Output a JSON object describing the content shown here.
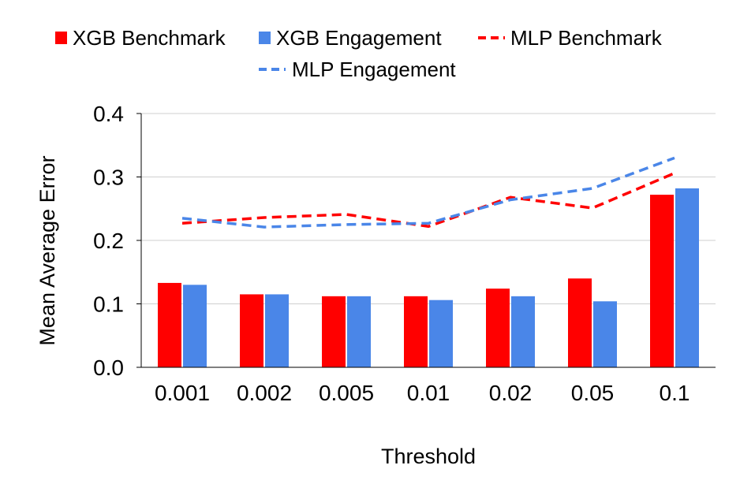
{
  "chart_data": {
    "type": "bar",
    "title": "",
    "xlabel": "Threshold",
    "ylabel": "Mean Average Error",
    "ylim": [
      0,
      0.4
    ],
    "yticks": [
      0.0,
      0.1,
      0.2,
      0.3,
      0.4
    ],
    "ytick_labels": [
      "0.0",
      "0.1",
      "0.2",
      "0.3",
      "0.4"
    ],
    "grid": true,
    "legend_position": "top",
    "categories": [
      "0.001",
      "0.002",
      "0.005",
      "0.01",
      "0.02",
      "0.05",
      "0.1"
    ],
    "series": [
      {
        "name": "XGB Benchmark",
        "kind": "bar",
        "color": "#ff0000",
        "values": [
          0.133,
          0.115,
          0.112,
          0.112,
          0.124,
          0.14,
          0.272
        ]
      },
      {
        "name": "XGB Engagement",
        "kind": "bar",
        "color": "#4a86e8",
        "values": [
          0.13,
          0.115,
          0.112,
          0.106,
          0.112,
          0.104,
          0.282
        ]
      },
      {
        "name": "MLP Benchmark",
        "kind": "line",
        "style": "dashed",
        "color": "#ff0000",
        "values": [
          0.227,
          0.236,
          0.241,
          0.222,
          0.268,
          0.251,
          0.306
        ]
      },
      {
        "name": "MLP Engagement",
        "kind": "line",
        "style": "dashed",
        "color": "#4a86e8",
        "values": [
          0.235,
          0.221,
          0.225,
          0.227,
          0.264,
          0.282,
          0.33
        ]
      }
    ]
  }
}
